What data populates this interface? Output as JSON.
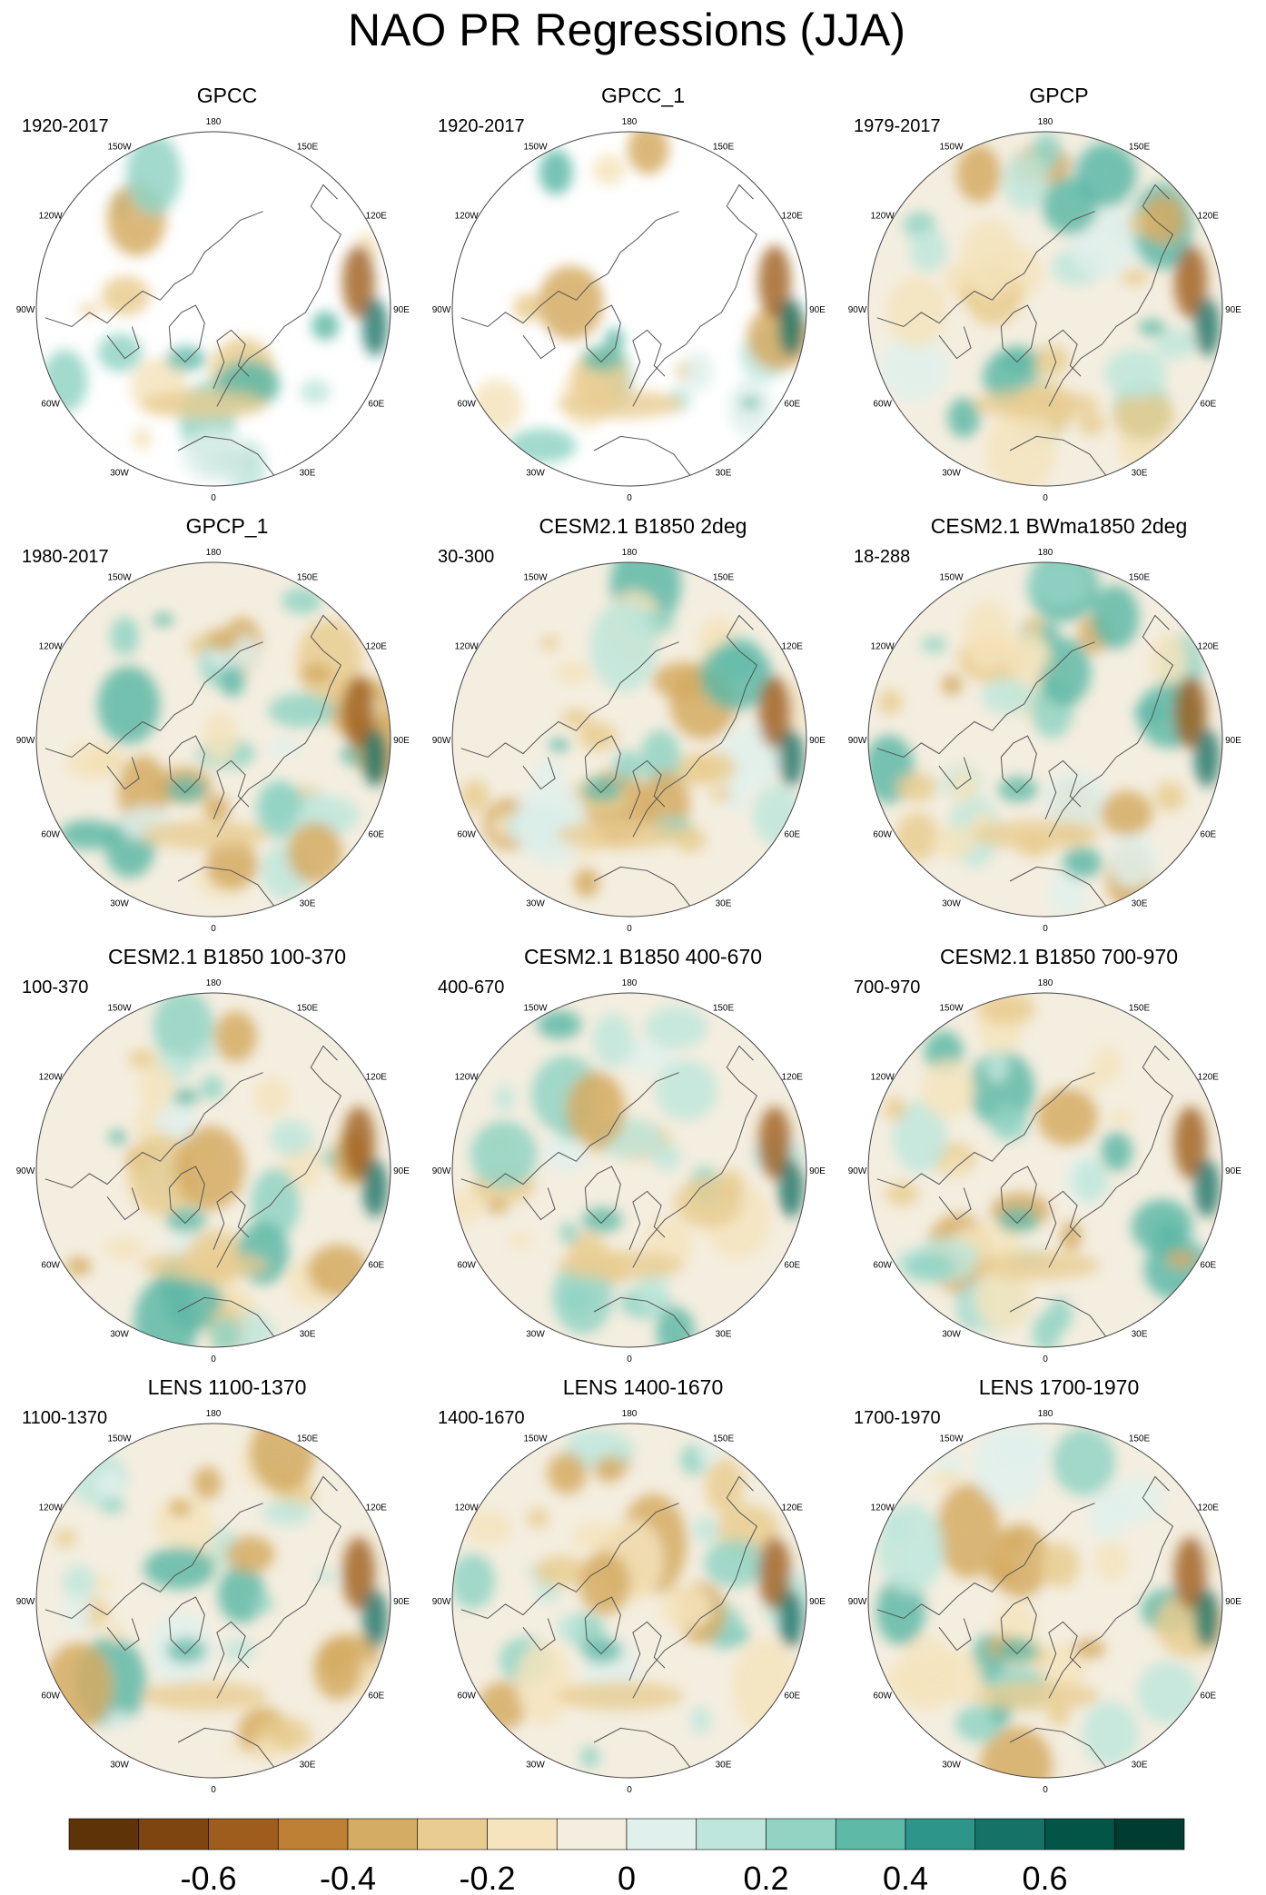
{
  "title": "NAO PR Regressions (JJA)",
  "panels": [
    {
      "title": "GPCC",
      "period": "1920-2017",
      "fill": "land-only"
    },
    {
      "title": "GPCC_1",
      "period": "1920-2017",
      "fill": "land-only"
    },
    {
      "title": "GPCP",
      "period": "1979-2017",
      "fill": "full"
    },
    {
      "title": "GPCP_1",
      "period": "1980-2017",
      "fill": "full"
    },
    {
      "title": "CESM2.1 B1850 2deg",
      "period": "30-300",
      "fill": "full"
    },
    {
      "title": "CESM2.1 BWma1850 2deg",
      "period": "18-288",
      "fill": "full"
    },
    {
      "title": "CESM2.1 B1850 100-370",
      "period": "100-370",
      "fill": "full"
    },
    {
      "title": "CESM2.1 B1850 400-670",
      "period": "400-670",
      "fill": "full"
    },
    {
      "title": "CESM2.1 B1850 700-970",
      "period": "700-970",
      "fill": "full"
    },
    {
      "title": "LENS 1100-1370",
      "period": "1100-1370",
      "fill": "full"
    },
    {
      "title": "LENS 1400-1670",
      "period": "1400-1670",
      "fill": "full"
    },
    {
      "title": "LENS 1700-1970",
      "period": "1700-1970",
      "fill": "full"
    }
  ],
  "longitude_labels": [
    "180",
    "150E",
    "120E",
    "90E",
    "60E",
    "30E",
    "0",
    "30W",
    "60W",
    "90W",
    "120W",
    "150W"
  ],
  "colorbar": {
    "colors": [
      "#5e3308",
      "#7f4510",
      "#9e5d1c",
      "#be8034",
      "#d5ac63",
      "#e9cc91",
      "#f5e4bd",
      "#f4eee0",
      "#e0f0ec",
      "#bfe6dc",
      "#92d4c4",
      "#5fb9a7",
      "#2e958a",
      "#157266",
      "#035548",
      "#013c30"
    ],
    "tick_labels": [
      "-0.6",
      "-0.4",
      "-0.2",
      "0",
      "0.2",
      "0.4",
      "0.6"
    ]
  }
}
